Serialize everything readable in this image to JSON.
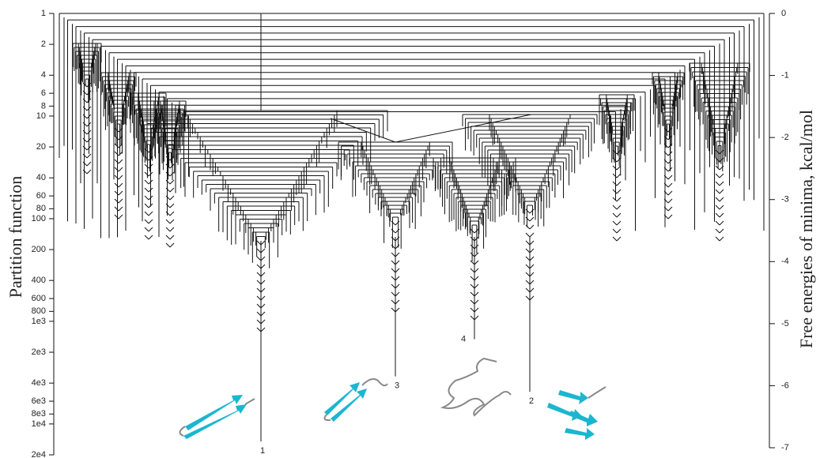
{
  "chart_data": {
    "type": "disconnectivity",
    "ylabel": "Partition function",
    "y2label": "Free energies of minima, kcal/mol",
    "yscale": "log",
    "ylim": [
      1,
      20000
    ],
    "yticks": [
      1,
      2,
      4,
      6,
      8,
      10,
      20,
      40,
      60,
      80,
      100,
      200,
      400,
      600,
      800,
      {
        "value": 1000,
        "label": "1e3"
      },
      {
        "value": 2000,
        "label": "2e3"
      },
      {
        "value": 4000,
        "label": "4e3"
      },
      {
        "value": 6000,
        "label": "6e3"
      },
      {
        "value": 8000,
        "label": "8e3"
      },
      {
        "value": 10000,
        "label": "1e4"
      },
      {
        "value": 20000,
        "label": "2e4"
      }
    ],
    "y2lim": [
      0,
      -7
    ],
    "y2ticks": [
      0,
      -1,
      -2,
      -3,
      -4,
      -5,
      -6,
      -7
    ],
    "minima": [
      {
        "label": "1",
        "energy": -6.9
      },
      {
        "label": "2",
        "energy": -6.1
      },
      {
        "label": "3",
        "energy": -5.85
      },
      {
        "label": "4",
        "energy": -5.25
      }
    ]
  }
}
